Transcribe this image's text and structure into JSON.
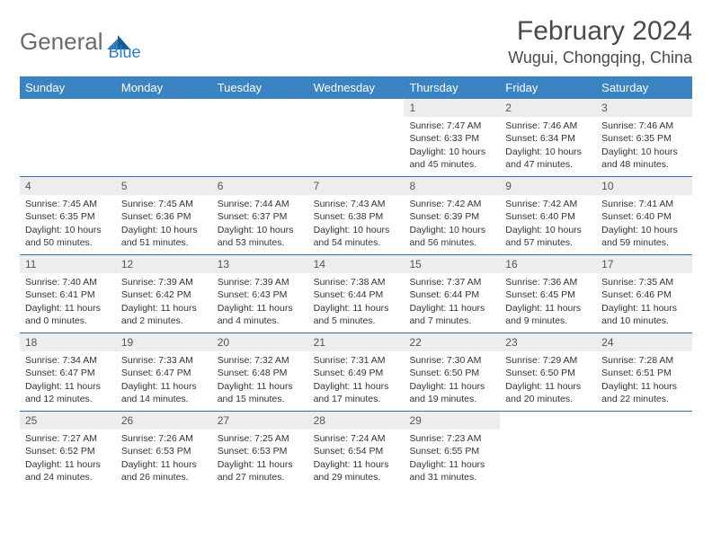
{
  "brand": {
    "general": "General",
    "blue": "Blue"
  },
  "title": "February 2024",
  "location": "Wugui, Chongqing, China",
  "colors": {
    "header_bg": "#3b84c4",
    "header_text": "#ffffff",
    "day_bar_bg": "#ededed",
    "divider": "#2f6ea8",
    "logo_blue": "#2f7bbf"
  },
  "day_names": [
    "Sunday",
    "Monday",
    "Tuesday",
    "Wednesday",
    "Thursday",
    "Friday",
    "Saturday"
  ],
  "weeks": [
    [
      {
        "empty": true
      },
      {
        "empty": true
      },
      {
        "empty": true
      },
      {
        "empty": true
      },
      {
        "num": "1",
        "sunrise": "Sunrise: 7:47 AM",
        "sunset": "Sunset: 6:33 PM",
        "day1": "Daylight: 10 hours",
        "day2": "and 45 minutes."
      },
      {
        "num": "2",
        "sunrise": "Sunrise: 7:46 AM",
        "sunset": "Sunset: 6:34 PM",
        "day1": "Daylight: 10 hours",
        "day2": "and 47 minutes."
      },
      {
        "num": "3",
        "sunrise": "Sunrise: 7:46 AM",
        "sunset": "Sunset: 6:35 PM",
        "day1": "Daylight: 10 hours",
        "day2": "and 48 minutes."
      }
    ],
    [
      {
        "num": "4",
        "sunrise": "Sunrise: 7:45 AM",
        "sunset": "Sunset: 6:35 PM",
        "day1": "Daylight: 10 hours",
        "day2": "and 50 minutes."
      },
      {
        "num": "5",
        "sunrise": "Sunrise: 7:45 AM",
        "sunset": "Sunset: 6:36 PM",
        "day1": "Daylight: 10 hours",
        "day2": "and 51 minutes."
      },
      {
        "num": "6",
        "sunrise": "Sunrise: 7:44 AM",
        "sunset": "Sunset: 6:37 PM",
        "day1": "Daylight: 10 hours",
        "day2": "and 53 minutes."
      },
      {
        "num": "7",
        "sunrise": "Sunrise: 7:43 AM",
        "sunset": "Sunset: 6:38 PM",
        "day1": "Daylight: 10 hours",
        "day2": "and 54 minutes."
      },
      {
        "num": "8",
        "sunrise": "Sunrise: 7:42 AM",
        "sunset": "Sunset: 6:39 PM",
        "day1": "Daylight: 10 hours",
        "day2": "and 56 minutes."
      },
      {
        "num": "9",
        "sunrise": "Sunrise: 7:42 AM",
        "sunset": "Sunset: 6:40 PM",
        "day1": "Daylight: 10 hours",
        "day2": "and 57 minutes."
      },
      {
        "num": "10",
        "sunrise": "Sunrise: 7:41 AM",
        "sunset": "Sunset: 6:40 PM",
        "day1": "Daylight: 10 hours",
        "day2": "and 59 minutes."
      }
    ],
    [
      {
        "num": "11",
        "sunrise": "Sunrise: 7:40 AM",
        "sunset": "Sunset: 6:41 PM",
        "day1": "Daylight: 11 hours",
        "day2": "and 0 minutes."
      },
      {
        "num": "12",
        "sunrise": "Sunrise: 7:39 AM",
        "sunset": "Sunset: 6:42 PM",
        "day1": "Daylight: 11 hours",
        "day2": "and 2 minutes."
      },
      {
        "num": "13",
        "sunrise": "Sunrise: 7:39 AM",
        "sunset": "Sunset: 6:43 PM",
        "day1": "Daylight: 11 hours",
        "day2": "and 4 minutes."
      },
      {
        "num": "14",
        "sunrise": "Sunrise: 7:38 AM",
        "sunset": "Sunset: 6:44 PM",
        "day1": "Daylight: 11 hours",
        "day2": "and 5 minutes."
      },
      {
        "num": "15",
        "sunrise": "Sunrise: 7:37 AM",
        "sunset": "Sunset: 6:44 PM",
        "day1": "Daylight: 11 hours",
        "day2": "and 7 minutes."
      },
      {
        "num": "16",
        "sunrise": "Sunrise: 7:36 AM",
        "sunset": "Sunset: 6:45 PM",
        "day1": "Daylight: 11 hours",
        "day2": "and 9 minutes."
      },
      {
        "num": "17",
        "sunrise": "Sunrise: 7:35 AM",
        "sunset": "Sunset: 6:46 PM",
        "day1": "Daylight: 11 hours",
        "day2": "and 10 minutes."
      }
    ],
    [
      {
        "num": "18",
        "sunrise": "Sunrise: 7:34 AM",
        "sunset": "Sunset: 6:47 PM",
        "day1": "Daylight: 11 hours",
        "day2": "and 12 minutes."
      },
      {
        "num": "19",
        "sunrise": "Sunrise: 7:33 AM",
        "sunset": "Sunset: 6:47 PM",
        "day1": "Daylight: 11 hours",
        "day2": "and 14 minutes."
      },
      {
        "num": "20",
        "sunrise": "Sunrise: 7:32 AM",
        "sunset": "Sunset: 6:48 PM",
        "day1": "Daylight: 11 hours",
        "day2": "and 15 minutes."
      },
      {
        "num": "21",
        "sunrise": "Sunrise: 7:31 AM",
        "sunset": "Sunset: 6:49 PM",
        "day1": "Daylight: 11 hours",
        "day2": "and 17 minutes."
      },
      {
        "num": "22",
        "sunrise": "Sunrise: 7:30 AM",
        "sunset": "Sunset: 6:50 PM",
        "day1": "Daylight: 11 hours",
        "day2": "and 19 minutes."
      },
      {
        "num": "23",
        "sunrise": "Sunrise: 7:29 AM",
        "sunset": "Sunset: 6:50 PM",
        "day1": "Daylight: 11 hours",
        "day2": "and 20 minutes."
      },
      {
        "num": "24",
        "sunrise": "Sunrise: 7:28 AM",
        "sunset": "Sunset: 6:51 PM",
        "day1": "Daylight: 11 hours",
        "day2": "and 22 minutes."
      }
    ],
    [
      {
        "num": "25",
        "sunrise": "Sunrise: 7:27 AM",
        "sunset": "Sunset: 6:52 PM",
        "day1": "Daylight: 11 hours",
        "day2": "and 24 minutes."
      },
      {
        "num": "26",
        "sunrise": "Sunrise: 7:26 AM",
        "sunset": "Sunset: 6:53 PM",
        "day1": "Daylight: 11 hours",
        "day2": "and 26 minutes."
      },
      {
        "num": "27",
        "sunrise": "Sunrise: 7:25 AM",
        "sunset": "Sunset: 6:53 PM",
        "day1": "Daylight: 11 hours",
        "day2": "and 27 minutes."
      },
      {
        "num": "28",
        "sunrise": "Sunrise: 7:24 AM",
        "sunset": "Sunset: 6:54 PM",
        "day1": "Daylight: 11 hours",
        "day2": "and 29 minutes."
      },
      {
        "num": "29",
        "sunrise": "Sunrise: 7:23 AM",
        "sunset": "Sunset: 6:55 PM",
        "day1": "Daylight: 11 hours",
        "day2": "and 31 minutes."
      },
      {
        "empty": true
      },
      {
        "empty": true
      }
    ]
  ]
}
